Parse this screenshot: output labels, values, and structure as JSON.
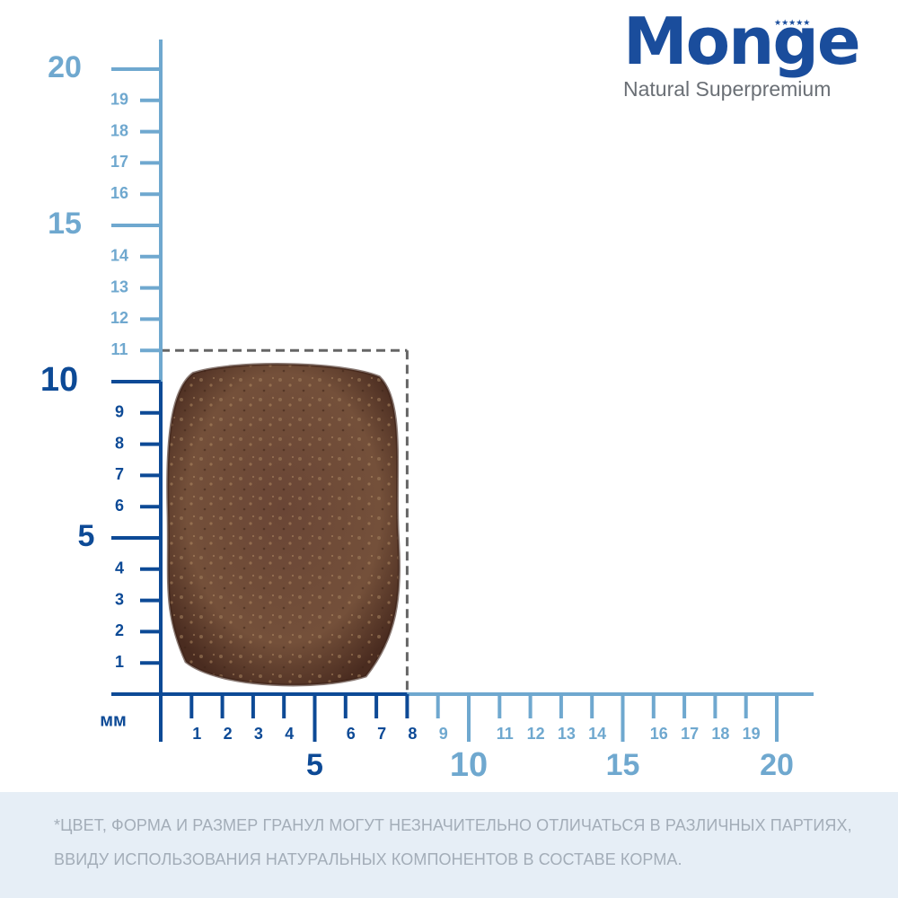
{
  "brand": {
    "name": "Monge",
    "tagline": "Natural Superpremium",
    "stars": "★★★★★",
    "color_primary": "#1a4d9c",
    "color_tagline": "#6a6f75"
  },
  "ruler": {
    "unit_label": "мм",
    "color_light": "#6fa8cf",
    "color_dark": "#0d4a96",
    "y_small_labels": [
      "1",
      "2",
      "3",
      "4",
      "6",
      "7",
      "8",
      "9",
      "11",
      "12",
      "13",
      "14",
      "16",
      "17",
      "18",
      "19"
    ],
    "y_big_labels": [
      "5",
      "10",
      "15",
      "20"
    ],
    "x_small_labels": [
      "1",
      "2",
      "3",
      "4",
      "6",
      "7",
      "8",
      "9",
      "11",
      "12",
      "13",
      "14",
      "16",
      "17",
      "18",
      "19"
    ],
    "x_big_labels": [
      "5",
      "10",
      "15",
      "20"
    ]
  },
  "kibble": {
    "width_mm": 8,
    "height_mm": 11,
    "color": "#6b4632"
  },
  "disclaimer": {
    "line1": "*ЦВЕТ, ФОРМА И РАЗМЕР ГРАНУЛ МОГУТ НЕЗНАЧИТЕЛЬНО ОТЛИЧАТЬСЯ В РАЗЛИЧНЫХ ПАРТИЯХ,",
    "line2": "ВВИДУ ИСПОЛЬЗОВАНИЯ НАТУРАЛЬНЫХ КОМПОНЕНТОВ В СОСТАВЕ КОРМА."
  }
}
